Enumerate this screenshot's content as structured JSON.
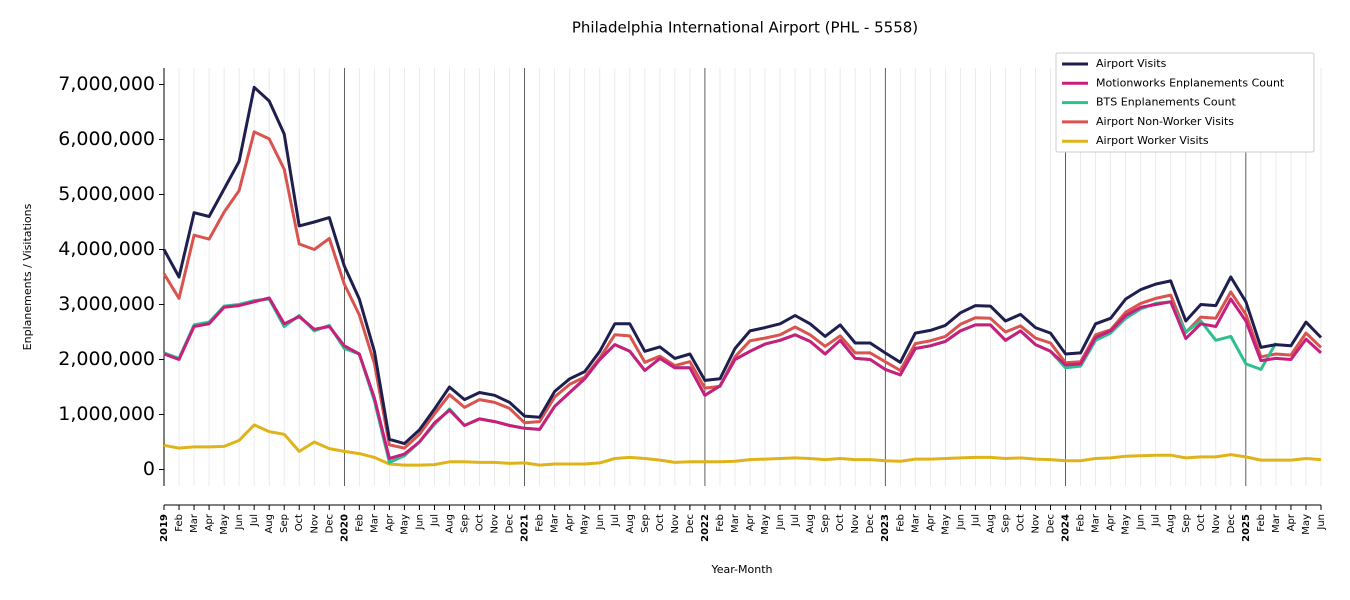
{
  "chart_data": {
    "type": "line",
    "title": "Philadelphia International Airport (PHL - 5558)",
    "x_label": "Year-Month",
    "y_label": "Enplanements / Visitations",
    "categories": [
      "2019",
      "Feb",
      "Mar",
      "Apr",
      "May",
      "Jun",
      "Jul",
      "Aug",
      "Sep",
      "Oct",
      "Nov",
      "Dec",
      "2020",
      "Feb",
      "Mar",
      "Apr",
      "May",
      "Jun",
      "Jul",
      "Aug",
      "Sep",
      "Oct",
      "Nov",
      "Dec",
      "2021",
      "Feb",
      "Mar",
      "Apr",
      "May",
      "Jun",
      "Jul",
      "Aug",
      "Sep",
      "Oct",
      "Nov",
      "Dec",
      "2022",
      "Feb",
      "Mar",
      "Apr",
      "May",
      "Jun",
      "Jul",
      "Aug",
      "Sep",
      "Oct",
      "Nov",
      "Dec",
      "2023",
      "Feb",
      "Mar",
      "Apr",
      "May",
      "Jun",
      "Jul",
      "Aug",
      "Sep",
      "Oct",
      "Nov",
      "Dec",
      "2024",
      "Feb",
      "Mar",
      "Apr",
      "May",
      "Jun",
      "Jul",
      "Aug",
      "Sep",
      "Oct",
      "Nov",
      "Dec",
      "2025",
      "Feb",
      "Mar",
      "Apr",
      "May",
      "Jun"
    ],
    "series": [
      {
        "name": "Airport Visits",
        "color": "#1f1f4f",
        "values": [
          4000000,
          3500000,
          4670000,
          4600000,
          5100000,
          5600000,
          6950000,
          6700000,
          6100000,
          4430000,
          4500000,
          4580000,
          3700000,
          3100000,
          2150000,
          550000,
          470000,
          720000,
          1100000,
          1500000,
          1270000,
          1400000,
          1350000,
          1220000,
          970000,
          950000,
          1420000,
          1650000,
          1780000,
          2150000,
          2650000,
          2650000,
          2150000,
          2230000,
          2020000,
          2100000,
          1620000,
          1650000,
          2200000,
          2520000,
          2580000,
          2650000,
          2800000,
          2650000,
          2420000,
          2630000,
          2300000,
          2300000,
          2120000,
          1950000,
          2480000,
          2530000,
          2620000,
          2850000,
          2980000,
          2970000,
          2700000,
          2820000,
          2580000,
          2480000,
          2100000,
          2120000,
          2650000,
          2750000,
          3100000,
          3270000,
          3370000,
          3430000,
          2700000,
          3000000,
          2980000,
          3500000,
          3050000,
          2220000,
          2270000,
          2250000,
          2680000,
          2400000
        ]
      },
      {
        "name": "Motionworks Enplanements Count",
        "color": "#c81e7e",
        "values": [
          2100000,
          2000000,
          2600000,
          2650000,
          2950000,
          2980000,
          3050000,
          3120000,
          2650000,
          2780000,
          2550000,
          2600000,
          2250000,
          2100000,
          1300000,
          200000,
          280000,
          500000,
          850000,
          1080000,
          800000,
          920000,
          870000,
          800000,
          750000,
          730000,
          1150000,
          1400000,
          1650000,
          2000000,
          2270000,
          2150000,
          1800000,
          2020000,
          1850000,
          1850000,
          1350000,
          1520000,
          2000000,
          2150000,
          2280000,
          2350000,
          2450000,
          2330000,
          2100000,
          2350000,
          2020000,
          2000000,
          1820000,
          1720000,
          2200000,
          2250000,
          2330000,
          2520000,
          2630000,
          2630000,
          2350000,
          2520000,
          2270000,
          2150000,
          1900000,
          1920000,
          2400000,
          2520000,
          2800000,
          2950000,
          3000000,
          3050000,
          2380000,
          2650000,
          2600000,
          3100000,
          2700000,
          1980000,
          2020000,
          2000000,
          2370000,
          2120000
        ]
      },
      {
        "name": "BTS Enplanements Count",
        "color": "#2bc08e",
        "values": [
          2120000,
          2020000,
          2630000,
          2680000,
          2970000,
          3000000,
          3070000,
          3100000,
          2600000,
          2800000,
          2520000,
          2620000,
          2200000,
          2100000,
          1250000,
          130000,
          250000,
          500000,
          820000,
          1100000,
          800000,
          920000,
          870000,
          800000,
          750000,
          730000,
          1150000,
          1400000,
          1650000,
          2000000,
          2270000,
          2150000,
          1800000,
          2020000,
          1850000,
          1850000,
          1350000,
          1520000,
          2000000,
          2150000,
          2280000,
          2350000,
          2450000,
          2330000,
          2100000,
          2350000,
          2020000,
          2000000,
          1820000,
          1720000,
          2200000,
          2250000,
          2330000,
          2520000,
          2630000,
          2630000,
          2350000,
          2520000,
          2270000,
          2150000,
          1850000,
          1880000,
          2350000,
          2480000,
          2750000,
          2920000,
          3020000,
          3050000,
          2500000,
          2700000,
          2350000,
          2420000,
          1920000,
          1820000,
          2300000,
          null,
          null,
          null
        ]
      },
      {
        "name": "Airport Non-Worker Visits",
        "color": "#d9534f",
        "values": [
          3560000,
          3110000,
          4260000,
          4190000,
          4680000,
          5070000,
          6140000,
          6010000,
          5460000,
          4100000,
          4000000,
          4200000,
          3370000,
          2810000,
          1930000,
          450000,
          390000,
          640000,
          1010000,
          1360000,
          1130000,
          1270000,
          1220000,
          1110000,
          850000,
          870000,
          1320000,
          1550000,
          1680000,
          2030000,
          2450000,
          2430000,
          1950000,
          2060000,
          1890000,
          1960000,
          1480000,
          1510000,
          2050000,
          2340000,
          2390000,
          2450000,
          2590000,
          2450000,
          2240000,
          2430000,
          2120000,
          2120000,
          1960000,
          1800000,
          2290000,
          2340000,
          2420000,
          2640000,
          2760000,
          2750000,
          2500000,
          2610000,
          2390000,
          2300000,
          1940000,
          1960000,
          2450000,
          2540000,
          2860000,
          3020000,
          3110000,
          3170000,
          2490000,
          2770000,
          2750000,
          3230000,
          2820000,
          2050000,
          2100000,
          2080000,
          2480000,
          2220000
        ]
      },
      {
        "name": "Airport Worker Visits",
        "color": "#e0b31a",
        "values": [
          440000,
          390000,
          410000,
          410000,
          420000,
          530000,
          810000,
          690000,
          640000,
          330000,
          500000,
          380000,
          330000,
          290000,
          220000,
          100000,
          80000,
          80000,
          90000,
          140000,
          140000,
          130000,
          130000,
          110000,
          120000,
          80000,
          100000,
          100000,
          100000,
          120000,
          200000,
          220000,
          200000,
          170000,
          130000,
          140000,
          140000,
          140000,
          150000,
          180000,
          190000,
          200000,
          210000,
          200000,
          180000,
          200000,
          180000,
          180000,
          160000,
          150000,
          190000,
          190000,
          200000,
          210000,
          220000,
          220000,
          200000,
          210000,
          190000,
          180000,
          160000,
          160000,
          200000,
          210000,
          240000,
          250000,
          260000,
          260000,
          210000,
          230000,
          230000,
          270000,
          230000,
          170000,
          170000,
          170000,
          200000,
          180000
        ]
      }
    ],
    "ylim": [
      -300000,
      7300000
    ],
    "yticks": [
      0,
      {
        "value": 1000000,
        "label": "1,000,000"
      },
      {
        "value": 2000000,
        "label": "2,000,000"
      },
      {
        "value": 3000000,
        "label": "3,000,000"
      },
      {
        "value": 4000000,
        "label": "4,000,000"
      },
      {
        "value": 5000000,
        "label": "5,000,000"
      },
      {
        "value": 6000000,
        "label": "6,000,000"
      },
      {
        "value": 7000000,
        "label": "7,000,000"
      }
    ],
    "grid": true,
    "legend": "upper right"
  }
}
